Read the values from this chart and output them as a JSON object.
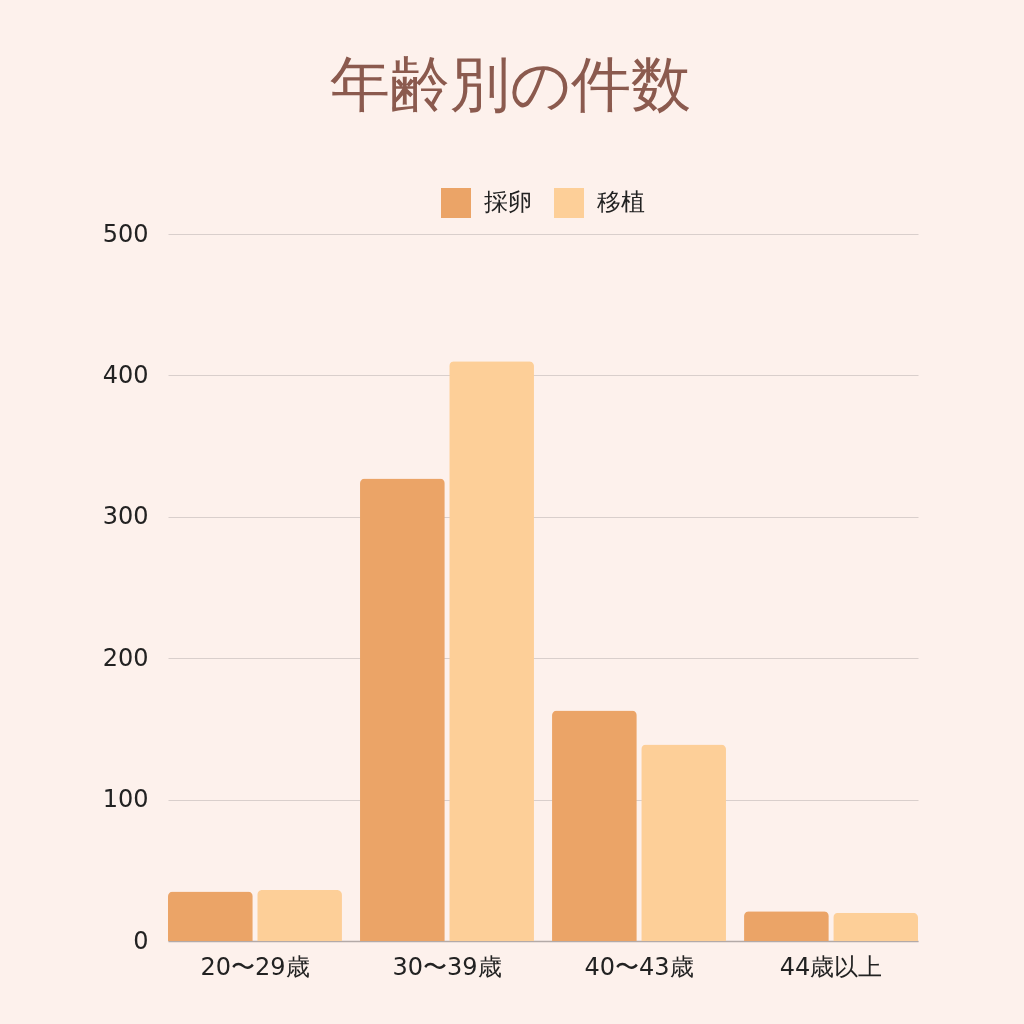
{
  "chart_data": {
    "type": "bar",
    "title": "年齢別の件数",
    "categories": [
      "20〜29歳",
      "30〜39歳",
      "40〜43歳",
      "44歳以上"
    ],
    "series": [
      {
        "name": "採卵",
        "color": "#eba467",
        "values": [
          35,
          327,
          163,
          21
        ]
      },
      {
        "name": "移植",
        "color": "#fdcf98",
        "values": [
          36,
          410,
          139,
          20
        ]
      }
    ],
    "ylim": [
      0,
      500
    ],
    "yticks": [
      0,
      100,
      200,
      300,
      400,
      500
    ],
    "grid": "y",
    "legend": "top"
  }
}
